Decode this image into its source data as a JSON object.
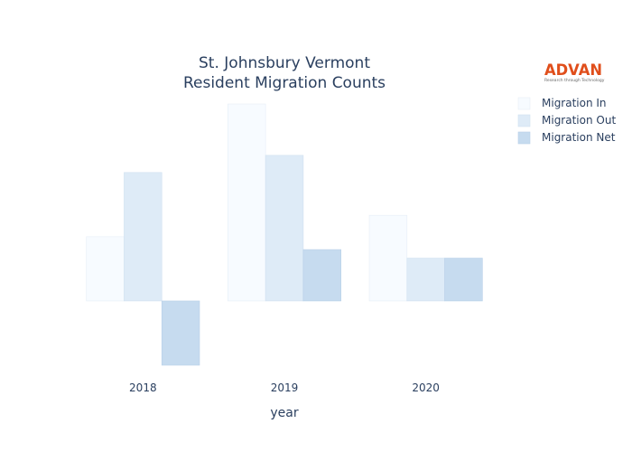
{
  "logo": {
    "text": "ADVAN",
    "tagline": "Research through Technology",
    "color": "#e04e1b"
  },
  "chart_data": {
    "type": "bar",
    "title": [
      "St. Johnsbury Vermont",
      "Resident Migration Counts"
    ],
    "xlabel": "year",
    "ylabel": "",
    "categories": [
      "2018",
      "2019",
      "2020"
    ],
    "series": [
      {
        "name": "Migration In",
        "values": [
          15,
          46,
          20
        ],
        "color": "#f7fbff",
        "stroke": "#e6eef7"
      },
      {
        "name": "Migration Out",
        "values": [
          30,
          34,
          10
        ],
        "color": "#deebf7",
        "stroke": "#d0e0f0"
      },
      {
        "name": "Migration Net",
        "values": [
          -15,
          12,
          10
        ],
        "color": "#c6dbef",
        "stroke": "#b8d0e8"
      }
    ],
    "ylim": [
      -15,
      46
    ],
    "grid": false,
    "y_ticks_visible": false,
    "legend": "top-right"
  }
}
